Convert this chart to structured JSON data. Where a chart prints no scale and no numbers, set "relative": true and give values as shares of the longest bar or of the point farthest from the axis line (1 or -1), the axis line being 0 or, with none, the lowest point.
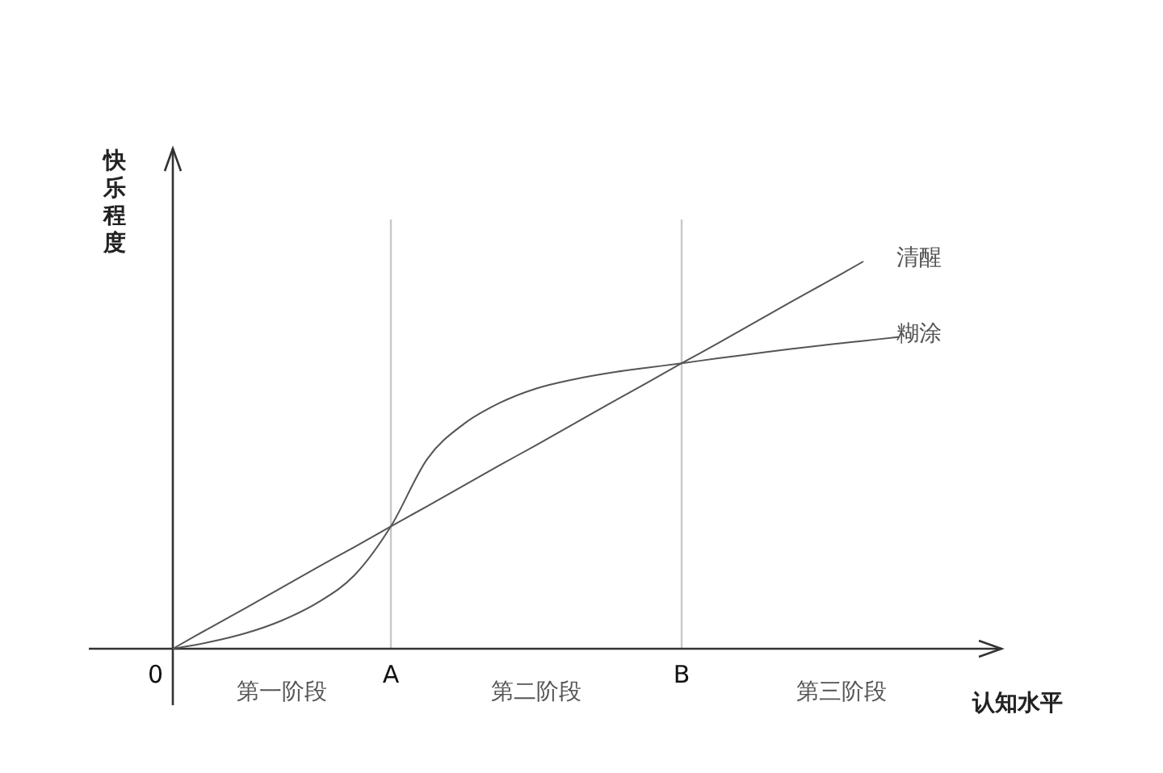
{
  "chart_data": {
    "type": "line",
    "relative": true,
    "xlabel": "认知水平",
    "ylabel": "快乐程度",
    "categories": [
      "0",
      null,
      null,
      null,
      null,
      null,
      "A",
      null,
      null,
      null,
      null,
      null,
      null,
      null,
      "B",
      null,
      null,
      null,
      null,
      null,
      null
    ],
    "series": [
      {
        "name": "清醒",
        "color": "#555555",
        "values": [
          0,
          0.053,
          0.105,
          0.158,
          0.211,
          0.263,
          0.316,
          0.368,
          0.421,
          0.474,
          0.526,
          0.579,
          0.632,
          0.684,
          0.737,
          0.789,
          0.842,
          0.895,
          0.947,
          1,
          null
        ]
      },
      {
        "name": "糊涂",
        "color": "#555555",
        "values": [
          0,
          0.017,
          0.04,
          0.073,
          0.12,
          0.19,
          0.316,
          0.49,
          0.58,
          0.635,
          0.672,
          0.695,
          0.712,
          0.725,
          0.737,
          0.75,
          0.762,
          0.774,
          0.785,
          0.795,
          0.805
        ]
      }
    ],
    "ref_lines": [
      {
        "axis": "x",
        "value": "A",
        "color": "#c8c8c8"
      },
      {
        "axis": "x",
        "value": "B",
        "color": "#c8c8c8"
      }
    ],
    "annotations": [
      "第一阶段",
      "第二阶段",
      "第三阶段"
    ],
    "grid": false,
    "legend": false,
    "marker": "none",
    "line_style": "solid"
  }
}
